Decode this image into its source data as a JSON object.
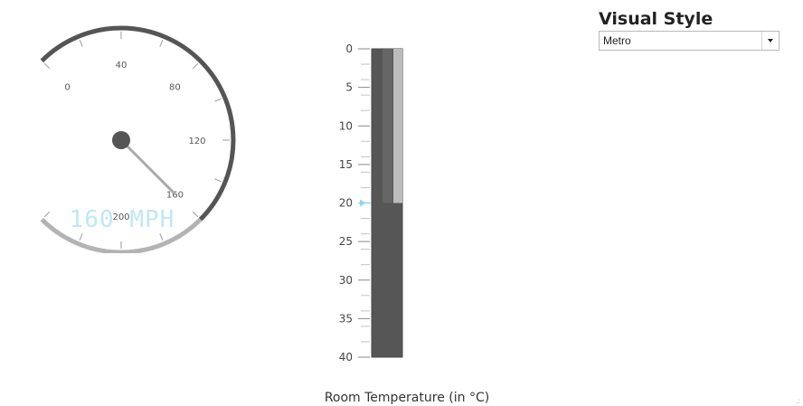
{
  "circular_gauge": {
    "min": 0,
    "max": 240,
    "value": 160,
    "range_start": 160,
    "tick_labels": [
      "0",
      "40",
      "80",
      "120",
      "160",
      "200"
    ],
    "tick_values": [
      0,
      40,
      80,
      120,
      160,
      200
    ],
    "readout": "160 MPH",
    "colors": {
      "scale": "#555555",
      "range": "#b3b3b3",
      "needle": "#555555",
      "readout": "#bfe8f3"
    }
  },
  "linear_gauge": {
    "min": 0,
    "max": 40,
    "value": 20,
    "tick_labels": [
      "0",
      "5",
      "10",
      "15",
      "20",
      "25",
      "30",
      "35",
      "40"
    ],
    "tick_values": [
      0,
      5,
      10,
      15,
      20,
      25,
      30,
      35,
      40
    ],
    "caption": "Room Temperature (in °C)",
    "colors": {
      "bar": "#565656",
      "range": "#bcbcbc",
      "marker": "#8fd8ec"
    }
  },
  "visual_style": {
    "title": "Visual Style",
    "selected": "Metro"
  },
  "resize_grip": ".:"
}
